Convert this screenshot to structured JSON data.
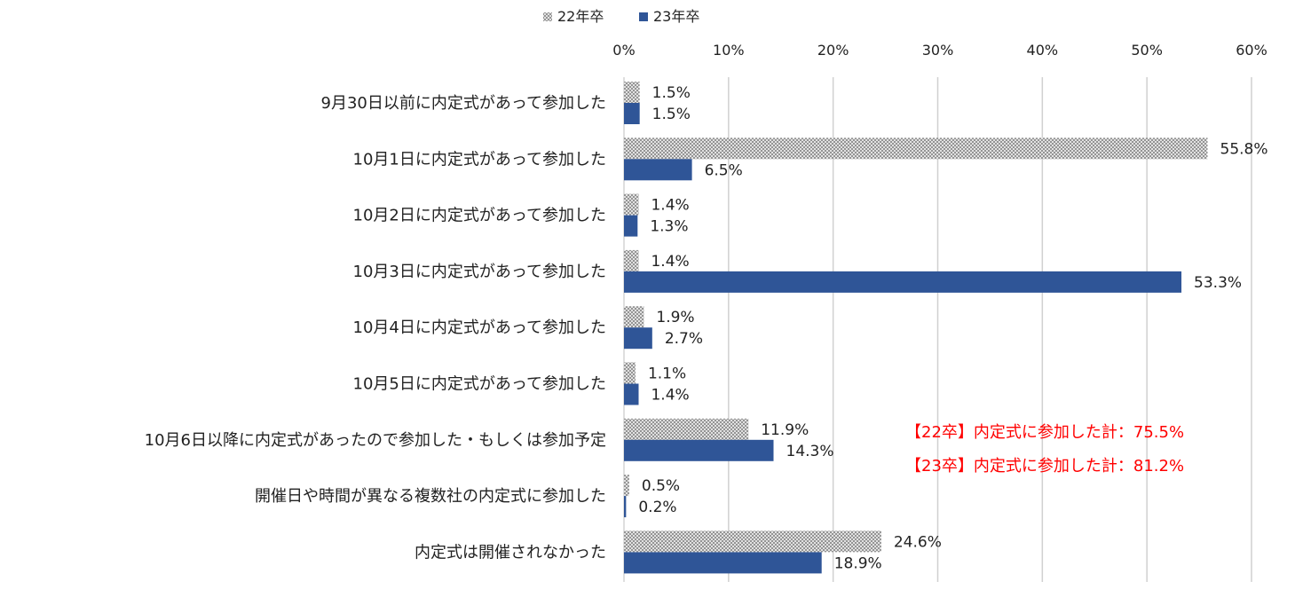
{
  "chart_data": {
    "type": "bar",
    "orientation": "horizontal",
    "categories": [
      "9月30日以前に内定式があって参加した",
      "10月1日に内定式があって参加した",
      "10月2日に内定式があって参加した",
      "10月3日に内定式があって参加した",
      "10月4日に内定式があって参加した",
      "10月5日に内定式があって参加した",
      "10月6日以降に内定式があったので参加した・もしくは参加予定",
      "開催日や時間が異なる複数社の内定式に参加した",
      "内定式は開催されなかった"
    ],
    "series": [
      {
        "name": "22年卒",
        "values": [
          1.5,
          55.8,
          1.4,
          1.4,
          1.9,
          1.1,
          11.9,
          0.5,
          24.6
        ],
        "pattern": "crosshatch",
        "color": "#9a9a9a"
      },
      {
        "name": "23年卒",
        "values": [
          1.5,
          6.5,
          1.3,
          53.3,
          2.7,
          1.4,
          14.3,
          0.2,
          18.9
        ],
        "pattern": "solid",
        "color": "#2f5597"
      }
    ],
    "xlim": [
      0,
      60
    ],
    "xticks": [
      "0%",
      "10%",
      "20%",
      "30%",
      "40%",
      "50%",
      "60%"
    ],
    "grid": true,
    "legend_position": "top",
    "value_suffix": "%",
    "annotations": [
      "【22卒】内定式に参加した計：75.5%",
      "【23卒】内定式に参加した計：81.2%"
    ],
    "annotation_color": "#ff0000"
  }
}
